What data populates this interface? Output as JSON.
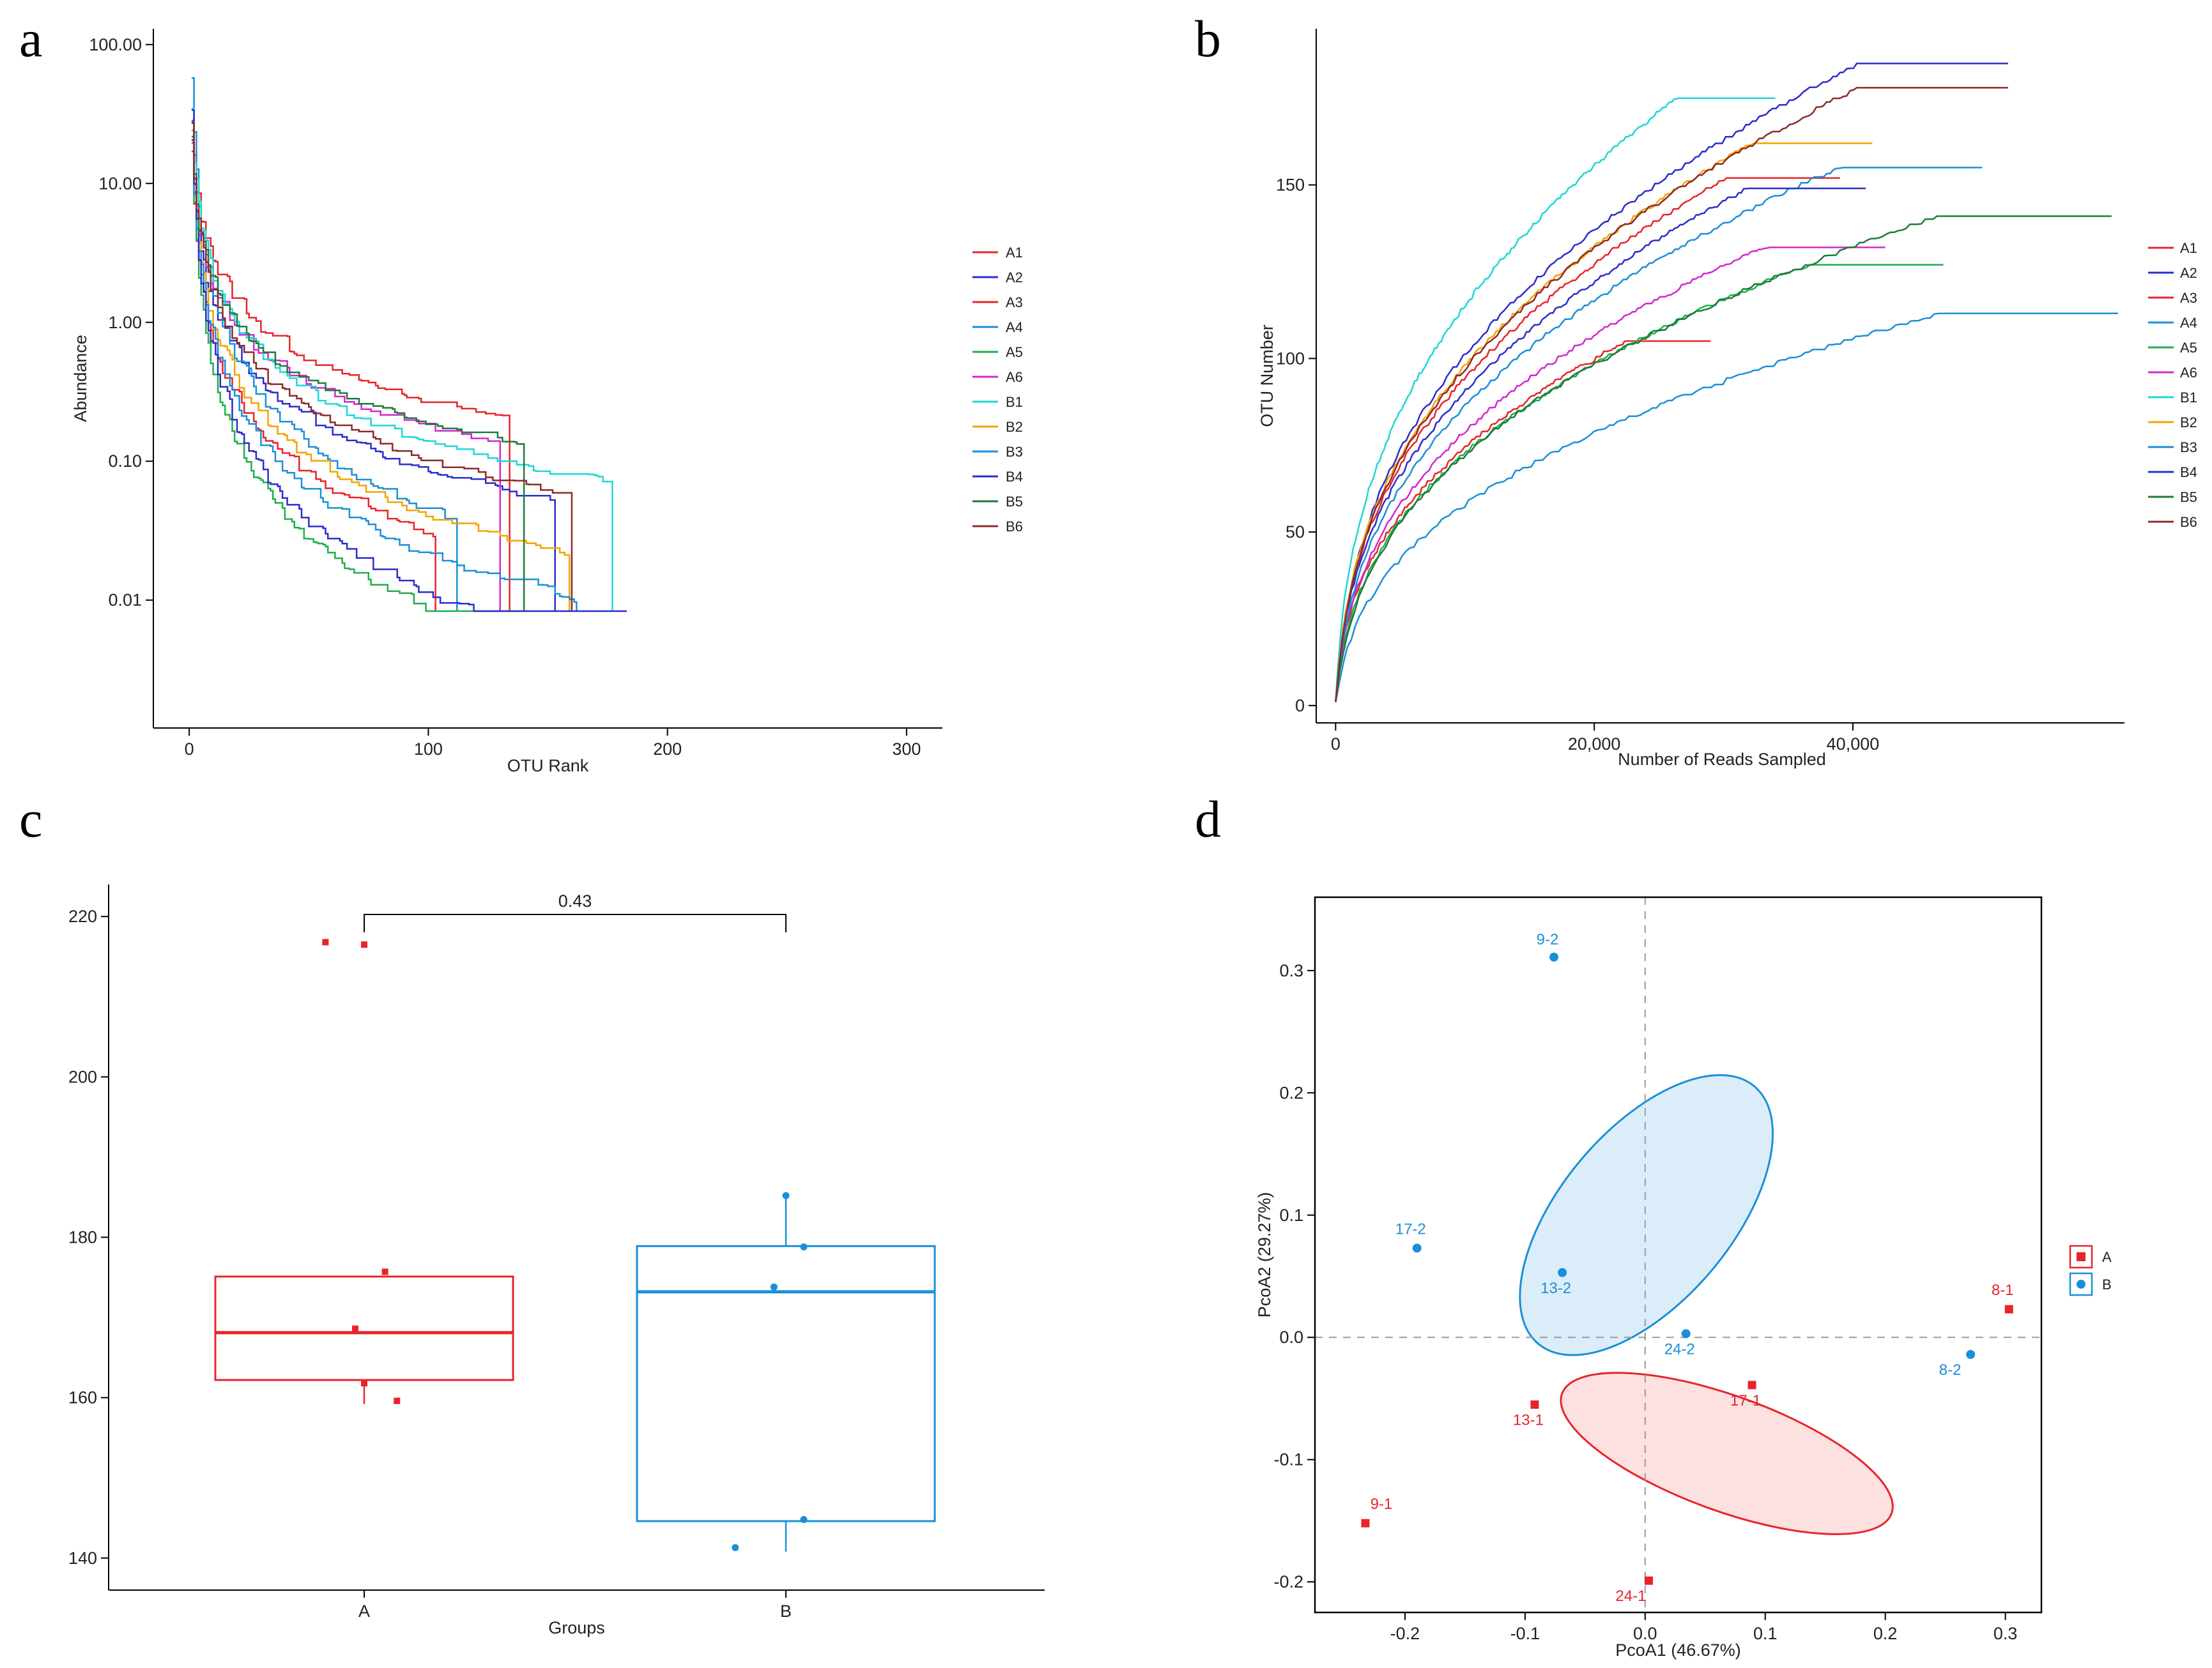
{
  "panels": {
    "a": "a",
    "b": "b",
    "c": "c",
    "d": "d"
  },
  "chart_data": [
    {
      "id": "a",
      "type": "line",
      "title": "",
      "xlabel": "OTU Rank",
      "ylabel": "Abundance",
      "yscale": "log",
      "xlim": [
        -15,
        315
      ],
      "ylim": [
        0.0012,
        130
      ],
      "xticks": [
        0,
        100,
        200,
        300
      ],
      "xtick_labels": [
        "0",
        "100",
        "200",
        "300"
      ],
      "yticks": [
        100,
        10,
        1,
        0.1,
        0.01
      ],
      "ytick_labels": [
        "100.00",
        "10.00",
        "1.00",
        "0.10",
        "0.01"
      ],
      "series": [
        {
          "name": "A1",
          "color": "#e8242b",
          "n": 134,
          "top": 30
        },
        {
          "name": "A2",
          "color": "#2a2dcc",
          "n": 153,
          "top": 22
        },
        {
          "name": "A3",
          "color": "#e8242b",
          "n": 103,
          "top": 18
        },
        {
          "name": "A4",
          "color": "#1a8fd8",
          "n": 112,
          "top": 60
        },
        {
          "name": "A5",
          "color": "#1fae4e",
          "n": 141,
          "top": 25
        },
        {
          "name": "A6",
          "color": "#d426d0",
          "n": 130,
          "top": 20
        },
        {
          "name": "B1",
          "color": "#1fd6d6",
          "n": 177,
          "top": 35
        },
        {
          "name": "B2",
          "color": "#f4a300",
          "n": 159,
          "top": 24
        },
        {
          "name": "B3",
          "color": "#1a8fd8",
          "n": 162,
          "top": 28
        },
        {
          "name": "B4",
          "color": "#2a2dcc",
          "n": 183,
          "top": 33
        },
        {
          "name": "B5",
          "color": "#1e7a3a",
          "n": 140,
          "top": 21
        },
        {
          "name": "B6",
          "color": "#8b2a2a",
          "n": 160,
          "top": 26
        }
      ]
    },
    {
      "id": "b",
      "type": "line",
      "title": "",
      "xlabel": "Number of Reads Sampled",
      "ylabel": "OTU Number",
      "xlim": [
        -1500,
        61000
      ],
      "ylim": [
        -5,
        195
      ],
      "xticks": [
        0,
        20000,
        40000
      ],
      "xtick_labels": [
        "0",
        "20,000",
        "40,000"
      ],
      "yticks": [
        0,
        50,
        100,
        150
      ],
      "ytick_labels": [
        "0",
        "50",
        "100",
        "150"
      ],
      "series": [
        {
          "name": "A1",
          "color": "#e8242b",
          "max_reads": 29000,
          "max_otu": 105
        },
        {
          "name": "A2",
          "color": "#2a2dcc",
          "max_reads": 52000,
          "max_otu": 185
        },
        {
          "name": "A3",
          "color": "#e8242b",
          "max_reads": 39000,
          "max_otu": 152
        },
        {
          "name": "A4",
          "color": "#1a8fd8",
          "max_reads": 60500,
          "max_otu": 113
        },
        {
          "name": "A5",
          "color": "#1fae4e",
          "max_reads": 47000,
          "max_otu": 127
        },
        {
          "name": "A6",
          "color": "#d426d0",
          "max_reads": 42500,
          "max_otu": 132
        },
        {
          "name": "B1",
          "color": "#1fd6d6",
          "max_reads": 34000,
          "max_otu": 175
        },
        {
          "name": "B2",
          "color": "#f4a300",
          "max_reads": 41500,
          "max_otu": 162
        },
        {
          "name": "B3",
          "color": "#1a8fd8",
          "max_reads": 50000,
          "max_otu": 155
        },
        {
          "name": "B4",
          "color": "#2a2dcc",
          "max_reads": 41000,
          "max_otu": 149
        },
        {
          "name": "B5",
          "color": "#1e7a3a",
          "max_reads": 60000,
          "max_otu": 141
        },
        {
          "name": "B6",
          "color": "#8b2a2a",
          "max_reads": 52000,
          "max_otu": 178
        }
      ]
    },
    {
      "id": "c",
      "type": "box",
      "title": "",
      "xlabel": "Groups",
      "ylabel": "",
      "ylim": [
        136,
        224
      ],
      "yticks": [
        140,
        160,
        180,
        200,
        220
      ],
      "ytick_labels": [
        "140",
        "160",
        "180",
        "200",
        "220"
      ],
      "categories": [
        "A",
        "B"
      ],
      "pvalue_label": "0.43",
      "groups": [
        {
          "name": "A",
          "color": "#e8242b",
          "marker": "square",
          "box": {
            "q1": 162.2,
            "median": 168.1,
            "q3": 175.1,
            "whisker_low": 159.2,
            "whisker_high": 175.1
          },
          "points": [
            {
              "dx": -0.13,
              "y": 216.8
            },
            {
              "dx": 0.0,
              "y": 216.5
            },
            {
              "dx": 0.07,
              "y": 175.7
            },
            {
              "dx": -0.03,
              "y": 168.6
            },
            {
              "dx": 0.0,
              "y": 161.8
            },
            {
              "dx": 0.11,
              "y": 159.6
            }
          ]
        },
        {
          "name": "B",
          "color": "#1a8fd8",
          "marker": "circle",
          "box": {
            "q1": 144.6,
            "median": 173.2,
            "q3": 178.9,
            "whisker_low": 140.8,
            "whisker_high": 185.2
          },
          "points": [
            {
              "dx": 0.0,
              "y": 185.2
            },
            {
              "dx": 0.06,
              "y": 178.8
            },
            {
              "dx": -0.04,
              "y": 173.8
            },
            {
              "dx": 0.06,
              "y": 144.8
            },
            {
              "dx": -0.17,
              "y": 141.3
            }
          ]
        }
      ]
    },
    {
      "id": "d",
      "type": "scatter",
      "title": "",
      "xlabel": "PcoA1 (46.67%)",
      "ylabel": "PcoA2 (29.27%)",
      "xlim": [
        -0.275,
        0.33
      ],
      "ylim": [
        -0.225,
        0.36
      ],
      "xticks": [
        -0.2,
        -0.1,
        0.0,
        0.1,
        0.2,
        0.3
      ],
      "xtick_labels": [
        "-0.2",
        "-0.1",
        "0.0",
        "0.1",
        "0.2",
        "0.3"
      ],
      "yticks": [
        -0.2,
        -0.1,
        0.0,
        0.1,
        0.2,
        0.3
      ],
      "ytick_labels": [
        "-0.2",
        "-0.1",
        "0.0",
        "0.1",
        "0.2",
        "0.3"
      ],
      "legend": [
        {
          "name": "A",
          "color": "#e8242b",
          "marker": "square"
        },
        {
          "name": "B",
          "color": "#1a8fd8",
          "marker": "circle"
        }
      ],
      "points": [
        {
          "label": "9-2",
          "group": "B",
          "x": -0.076,
          "y": 0.311
        },
        {
          "label": "17-2",
          "group": "B",
          "x": -0.19,
          "y": 0.073
        },
        {
          "label": "13-2",
          "group": "B",
          "x": -0.069,
          "y": 0.053
        },
        {
          "label": "24-2",
          "group": "B",
          "x": 0.034,
          "y": 0.003
        },
        {
          "label": "8-2",
          "group": "B",
          "x": 0.271,
          "y": -0.014
        },
        {
          "label": "8-1",
          "group": "A",
          "x": 0.303,
          "y": 0.023
        },
        {
          "label": "17-1",
          "group": "A",
          "x": 0.089,
          "y": -0.039
        },
        {
          "label": "13-1",
          "group": "A",
          "x": -0.092,
          "y": -0.055
        },
        {
          "label": "9-1",
          "group": "A",
          "x": -0.233,
          "y": -0.152
        },
        {
          "label": "24-1",
          "group": "A",
          "x": 0.003,
          "y": -0.199
        }
      ],
      "ellipses": [
        {
          "group": "B",
          "cx": 0.001,
          "cy": 0.1,
          "rx": 0.14,
          "ry": 0.07,
          "angle_deg": -50
        },
        {
          "group": "A",
          "cx": 0.068,
          "cy": -0.095,
          "rx": 0.146,
          "ry": 0.047,
          "angle_deg": 20
        }
      ]
    }
  ]
}
